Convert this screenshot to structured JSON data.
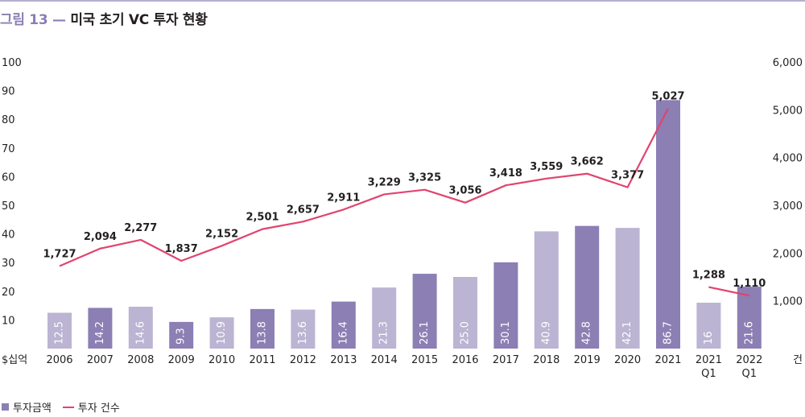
{
  "figure": {
    "number": "그림 13",
    "dash": "—",
    "title": "미국 초기 VC 투자 현황"
  },
  "colors": {
    "bar_dark": "#8b7fb4",
    "bar_light": "#bbb4d2",
    "line": "#e0446f",
    "rule": "#b7afcf",
    "title_num": "#8b7fb4"
  },
  "chart_data": {
    "type": "bar",
    "categories": [
      "2006",
      "2007",
      "2008",
      "2009",
      "2010",
      "2011",
      "2012",
      "2013",
      "2014",
      "2015",
      "2016",
      "2017",
      "2018",
      "2019",
      "2020",
      "2021",
      "2021\nQ1",
      "2022\nQ1"
    ],
    "series": [
      {
        "name": "투자금액",
        "type": "bar",
        "axis": "left",
        "values": [
          12.5,
          14.2,
          14.6,
          9.3,
          10.9,
          13.8,
          13.6,
          16.4,
          21.3,
          26.1,
          25.0,
          30.1,
          40.9,
          42.8,
          42.1,
          86.7,
          16,
          21.6
        ],
        "labels": [
          "12.5",
          "14.2",
          "14.6",
          "9.3",
          "10.9",
          "13.8",
          "13.6",
          "16.4",
          "21.3",
          "26.1",
          "25.0",
          "30.1",
          "40.9",
          "42.8",
          "42.1",
          "86.7",
          "16",
          "21.6"
        ],
        "shade": [
          "light",
          "dark",
          "light",
          "dark",
          "light",
          "dark",
          "light",
          "dark",
          "light",
          "dark",
          "light",
          "dark",
          "light",
          "dark",
          "light",
          "dark",
          "light",
          "dark"
        ]
      },
      {
        "name": "투자 건수",
        "type": "line",
        "axis": "right",
        "values": [
          1727,
          2094,
          2277,
          1837,
          2152,
          2501,
          2657,
          2911,
          3229,
          3325,
          3056,
          3418,
          3559,
          3662,
          3377,
          5027,
          1288,
          1110
        ],
        "labels": [
          "1,727",
          "2,094",
          "2,277",
          "1,837",
          "2,152",
          "2,501",
          "2,657",
          "2,911",
          "3,229",
          "3,325",
          "3,056",
          "3,418",
          "3,559",
          "3,662",
          "3,377",
          "5,027",
          "1,288",
          "1,110"
        ],
        "segments": [
          [
            0,
            15
          ],
          [
            16,
            17
          ]
        ]
      }
    ],
    "y_left": {
      "label": "$십억",
      "ylim": [
        0,
        100
      ],
      "ticks": [
        "10",
        "20",
        "30",
        "40",
        "50",
        "60",
        "70",
        "80",
        "90",
        "100"
      ]
    },
    "y_right": {
      "label": "건",
      "ylim": [
        0,
        6000
      ],
      "ticks": [
        "1,000",
        "2,000",
        "3,000",
        "4,000",
        "5,000",
        "6,000"
      ]
    },
    "grid": false,
    "legend_position": "bottom-left"
  }
}
